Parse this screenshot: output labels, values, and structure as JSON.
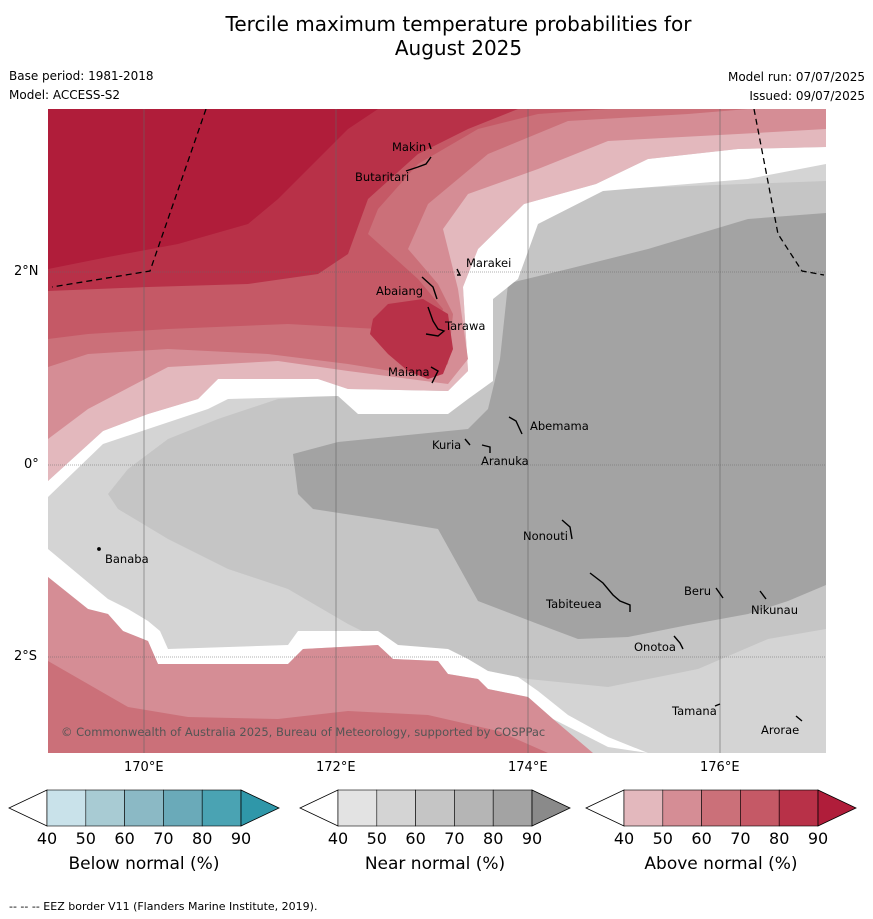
{
  "title_line1": "Tercile maximum temperature probabilities for",
  "title_line2": "August 2025",
  "base_period": "Base period: 1981-2018",
  "model": "Model: ACCESS-S2",
  "model_run": "Model run: 07/07/2025",
  "issued": "Issued: 09/07/2025",
  "copyright": "© Commonwealth of Australia 2025, Bureau of Meteorology, supported by COSPPac",
  "footnote": "--  --  -- EEZ border V11 (Flanders Marine Institute, 2019).",
  "lon_ticks": [
    "170°E",
    "172°E",
    "174°E",
    "176°E"
  ],
  "lat_ticks": [
    "2°N",
    "0°",
    "2°S"
  ],
  "places": [
    "Makin",
    "Butaritari",
    "Marakei",
    "Abaiang",
    "Tarawa",
    "Maiana",
    "Abemama",
    "Kuria",
    "Aranuka",
    "Banaba",
    "Nonouti",
    "Tabiteuea",
    "Beru",
    "Nikunau",
    "Onotoa",
    "Tamana",
    "Arorae"
  ],
  "colorbars": [
    {
      "label": "Below normal (%)",
      "ticks": [
        "40",
        "50",
        "60",
        "70",
        "80",
        "90"
      ],
      "colors": [
        "#c9e2ea",
        "#a8cbd3",
        "#8bb9c5",
        "#6aaab9",
        "#4aa3b3",
        "#2f97a9"
      ]
    },
    {
      "label": "Near normal (%)",
      "ticks": [
        "40",
        "50",
        "60",
        "70",
        "80",
        "90"
      ],
      "colors": [
        "#e3e3e3",
        "#d4d4d4",
        "#c5c5c5",
        "#b5b5b5",
        "#a3a3a3",
        "#8a8a8a"
      ]
    },
    {
      "label": "Above normal (%)",
      "ticks": [
        "40",
        "50",
        "60",
        "70",
        "80",
        "90"
      ],
      "colors": [
        "#e3b8bd",
        "#d58d95",
        "#cb7079",
        "#c55966",
        "#b83148",
        "#b01d3a"
      ]
    }
  ],
  "colors": {
    "above_40_50": "#e3b8bd",
    "above_50_60": "#d58d95",
    "above_60_70": "#cb7079",
    "above_70_80": "#c55966",
    "above_80_90": "#b83148",
    "above_90": "#b01d3a",
    "near_40_50": "#e3e3e3",
    "near_50_60": "#d4d4d4",
    "near_60_70": "#c5c5c5",
    "near_70_80": "#a3a3a3"
  }
}
